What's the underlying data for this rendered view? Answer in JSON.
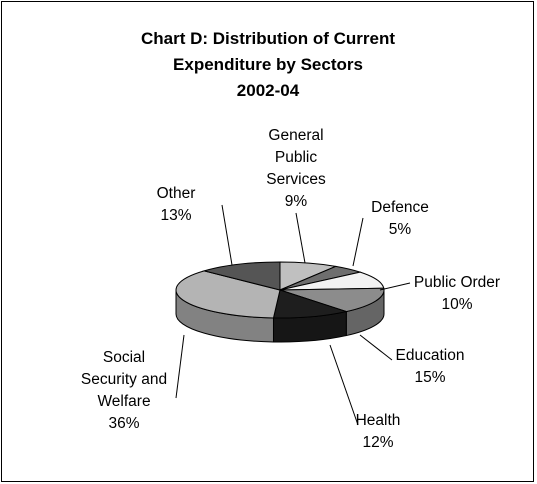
{
  "chart_data": {
    "type": "pie",
    "variant": "3d-exploded-none",
    "title": "Chart D: Distribution of Current Expenditure by Sectors 2002-04",
    "title_lines": [
      "Chart D: Distribution of Current",
      "Expenditure by Sectors",
      "2002-04"
    ],
    "unit": "%",
    "slices": [
      {
        "name": "General Public Services",
        "label_lines": [
          "General",
          "Public",
          "Services",
          "9%"
        ],
        "value": 9,
        "pct_label": "9%",
        "color": "#c0c0c0"
      },
      {
        "name": "Defence",
        "label_lines": [
          "Defence",
          "5%"
        ],
        "value": 5,
        "pct_label": "5%",
        "color": "#6e6e6e"
      },
      {
        "name": "Public Order",
        "label_lines": [
          "Public Order",
          "10%"
        ],
        "value": 10,
        "pct_label": "10%",
        "color": "#f2f2f2"
      },
      {
        "name": "Education",
        "label_lines": [
          "Education",
          "15%"
        ],
        "value": 15,
        "pct_label": "15%",
        "color": "#8c8c8c"
      },
      {
        "name": "Health",
        "label_lines": [
          "Health",
          "12%"
        ],
        "value": 12,
        "pct_label": "12%",
        "color": "#1e1e1e"
      },
      {
        "name": "Social Security and Welfare",
        "label_lines": [
          "Social",
          "Security and",
          "Welfare",
          "36%"
        ],
        "value": 36,
        "pct_label": "36%",
        "color": "#b4b4b4"
      },
      {
        "name": "Other",
        "label_lines": [
          "Other",
          "13%"
        ],
        "value": 13,
        "pct_label": "13%",
        "color": "#555555"
      }
    ],
    "legend": "none",
    "data_labels": "outside-with-leader-lines"
  }
}
